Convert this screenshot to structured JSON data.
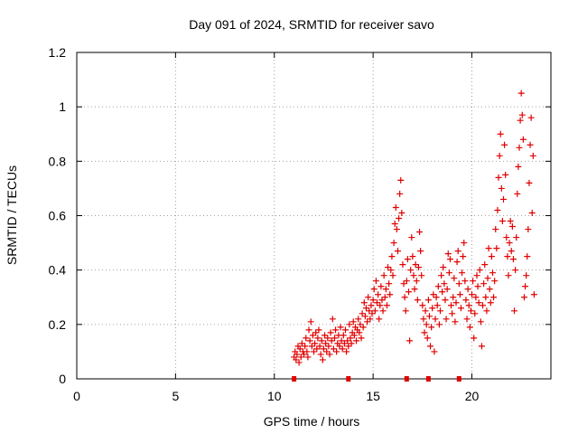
{
  "chart_data": {
    "type": "scatter",
    "title": "Day 091 of 2024, SRMTID for receiver savo",
    "xlabel": "GPS time / hours",
    "ylabel": "SRMTID / TECUs",
    "xlim": [
      0,
      24
    ],
    "ylim": [
      0,
      1.2
    ],
    "grid": true,
    "legend": "none",
    "xticks": [
      0,
      5,
      10,
      15,
      20
    ],
    "xtick_labels": [
      "0",
      "5",
      "10",
      "15",
      "20"
    ],
    "yticks": [
      0,
      0.2,
      0.4,
      0.6,
      0.8,
      1.0,
      1.2
    ],
    "ytick_labels": [
      "0",
      "0.2",
      "0.4",
      "0.6",
      "0.8",
      "1",
      "1.2"
    ],
    "marker_color": "#e00000",
    "series": [
      {
        "name": "SRMTID",
        "marker": "+",
        "points": [
          [
            11.0,
            0.08
          ],
          [
            11.05,
            0.1
          ],
          [
            11.1,
            0.07
          ],
          [
            11.15,
            0.09
          ],
          [
            11.2,
            0.12
          ],
          [
            11.25,
            0.06
          ],
          [
            11.3,
            0.11
          ],
          [
            11.35,
            0.08
          ],
          [
            11.4,
            0.13
          ],
          [
            11.45,
            0.1
          ],
          [
            11.5,
            0.09
          ],
          [
            11.55,
            0.12
          ],
          [
            11.6,
            0.15
          ],
          [
            11.65,
            0.1
          ],
          [
            11.7,
            0.08
          ],
          [
            11.75,
            0.18
          ],
          [
            11.8,
            0.14
          ],
          [
            11.85,
            0.21
          ],
          [
            11.9,
            0.12
          ],
          [
            11.95,
            0.16
          ],
          [
            12.0,
            0.1
          ],
          [
            12.05,
            0.13
          ],
          [
            12.1,
            0.17
          ],
          [
            12.15,
            0.11
          ],
          [
            12.2,
            0.15
          ],
          [
            12.25,
            0.18
          ],
          [
            12.3,
            0.12
          ],
          [
            12.35,
            0.09
          ],
          [
            12.4,
            0.14
          ],
          [
            12.45,
            0.07
          ],
          [
            12.5,
            0.11
          ],
          [
            12.55,
            0.16
          ],
          [
            12.6,
            0.13
          ],
          [
            12.65,
            0.1
          ],
          [
            12.7,
            0.15
          ],
          [
            12.75,
            0.12
          ],
          [
            12.8,
            0.09
          ],
          [
            12.85,
            0.17
          ],
          [
            12.9,
            0.14
          ],
          [
            12.95,
            0.22
          ],
          [
            13.0,
            0.11
          ],
          [
            13.05,
            0.15
          ],
          [
            13.1,
            0.18
          ],
          [
            13.15,
            0.1
          ],
          [
            13.2,
            0.13
          ],
          [
            13.25,
            0.16
          ],
          [
            13.3,
            0.12
          ],
          [
            13.35,
            0.19
          ],
          [
            13.4,
            0.14
          ],
          [
            13.45,
            0.11
          ],
          [
            13.5,
            0.16
          ],
          [
            13.55,
            0.13
          ],
          [
            13.6,
            0.18
          ],
          [
            13.65,
            0.1
          ],
          [
            13.7,
            0.14
          ],
          [
            13.75,
            0.12
          ],
          [
            13.8,
            0.2
          ],
          [
            13.85,
            0.15
          ],
          [
            13.9,
            0.13
          ],
          [
            13.95,
            0.17
          ],
          [
            14.0,
            0.21
          ],
          [
            14.05,
            0.16
          ],
          [
            14.1,
            0.19
          ],
          [
            14.15,
            0.14
          ],
          [
            14.2,
            0.18
          ],
          [
            14.25,
            0.22
          ],
          [
            14.3,
            0.17
          ],
          [
            14.35,
            0.2
          ],
          [
            14.4,
            0.15
          ],
          [
            14.45,
            0.24
          ],
          [
            14.5,
            0.19
          ],
          [
            14.55,
            0.28
          ],
          [
            14.6,
            0.23
          ],
          [
            14.65,
            0.26
          ],
          [
            14.7,
            0.21
          ],
          [
            14.75,
            0.3
          ],
          [
            14.8,
            0.25
          ],
          [
            14.85,
            0.22
          ],
          [
            14.9,
            0.27
          ],
          [
            14.95,
            0.24
          ],
          [
            15.0,
            0.29
          ],
          [
            15.05,
            0.33
          ],
          [
            15.1,
            0.25
          ],
          [
            15.15,
            0.36
          ],
          [
            15.2,
            0.28
          ],
          [
            15.25,
            0.31
          ],
          [
            15.3,
            0.22
          ],
          [
            15.35,
            0.27
          ],
          [
            15.4,
            0.34
          ],
          [
            15.45,
            0.29
          ],
          [
            15.5,
            0.25
          ],
          [
            15.55,
            0.38
          ],
          [
            15.6,
            0.3
          ],
          [
            15.65,
            0.33
          ],
          [
            15.7,
            0.27
          ],
          [
            15.75,
            0.41
          ],
          [
            15.8,
            0.35
          ],
          [
            15.85,
            0.31
          ],
          [
            15.9,
            0.4
          ],
          [
            15.95,
            0.45
          ],
          [
            16.0,
            0.38
          ],
          [
            16.05,
            0.5
          ],
          [
            16.1,
            0.57
          ],
          [
            16.15,
            0.63
          ],
          [
            16.2,
            0.55
          ],
          [
            16.25,
            0.47
          ],
          [
            16.3,
            0.59
          ],
          [
            16.35,
            0.68
          ],
          [
            16.4,
            0.73
          ],
          [
            16.45,
            0.61
          ],
          [
            16.5,
            0.42
          ],
          [
            16.55,
            0.35
          ],
          [
            16.6,
            0.3
          ],
          [
            16.65,
            0.25
          ],
          [
            16.7,
            0.36
          ],
          [
            16.75,
            0.44
          ],
          [
            16.8,
            0.32
          ],
          [
            16.85,
            0.14
          ],
          [
            16.9,
            0.4
          ],
          [
            16.95,
            0.52
          ],
          [
            17.0,
            0.45
          ],
          [
            17.05,
            0.38
          ],
          [
            17.1,
            0.33
          ],
          [
            17.15,
            0.42
          ],
          [
            17.2,
            0.36
          ],
          [
            17.25,
            0.29
          ],
          [
            17.3,
            0.41
          ],
          [
            17.35,
            0.54
          ],
          [
            17.4,
            0.47
          ],
          [
            17.45,
            0.38
          ],
          [
            17.5,
            0.27
          ],
          [
            17.55,
            0.22
          ],
          [
            17.6,
            0.17
          ],
          [
            17.65,
            0.25
          ],
          [
            17.7,
            0.2
          ],
          [
            17.75,
            0.15
          ],
          [
            17.8,
            0.29
          ],
          [
            17.85,
            0.23
          ],
          [
            17.9,
            0.12
          ],
          [
            17.95,
            0.19
          ],
          [
            18.0,
            0.26
          ],
          [
            18.05,
            0.31
          ],
          [
            18.1,
            0.1
          ],
          [
            18.15,
            0.22
          ],
          [
            18.2,
            0.3
          ],
          [
            18.25,
            0.27
          ],
          [
            18.3,
            0.34
          ],
          [
            18.35,
            0.2
          ],
          [
            18.4,
            0.25
          ],
          [
            18.45,
            0.38
          ],
          [
            18.5,
            0.32
          ],
          [
            18.55,
            0.41
          ],
          [
            18.6,
            0.35
          ],
          [
            18.65,
            0.29
          ],
          [
            18.7,
            0.22
          ],
          [
            18.75,
            0.33
          ],
          [
            18.8,
            0.46
          ],
          [
            18.85,
            0.39
          ],
          [
            18.9,
            0.44
          ],
          [
            18.95,
            0.27
          ],
          [
            19.0,
            0.24
          ],
          [
            19.05,
            0.3
          ],
          [
            19.1,
            0.37
          ],
          [
            19.15,
            0.21
          ],
          [
            19.2,
            0.28
          ],
          [
            19.25,
            0.43
          ],
          [
            19.3,
            0.47
          ],
          [
            19.35,
            0.35
          ],
          [
            19.4,
            0.31
          ],
          [
            19.45,
            0.26
          ],
          [
            19.5,
            0.39
          ],
          [
            19.55,
            0.45
          ],
          [
            19.6,
            0.5
          ],
          [
            19.65,
            0.36
          ],
          [
            19.7,
            0.29
          ],
          [
            19.75,
            0.22
          ],
          [
            19.8,
            0.33
          ],
          [
            19.85,
            0.27
          ],
          [
            19.9,
            0.19
          ],
          [
            19.95,
            0.25
          ],
          [
            20.0,
            0.31
          ],
          [
            20.05,
            0.36
          ],
          [
            20.1,
            0.15
          ],
          [
            20.15,
            0.24
          ],
          [
            20.2,
            0.3
          ],
          [
            20.25,
            0.38
          ],
          [
            20.3,
            0.34
          ],
          [
            20.35,
            0.28
          ],
          [
            20.4,
            0.4
          ],
          [
            20.45,
            0.21
          ],
          [
            20.5,
            0.12
          ],
          [
            20.55,
            0.27
          ],
          [
            20.6,
            0.35
          ],
          [
            20.65,
            0.42
          ],
          [
            20.7,
            0.3
          ],
          [
            20.75,
            0.25
          ],
          [
            20.8,
            0.37
          ],
          [
            20.85,
            0.48
          ],
          [
            20.9,
            0.33
          ],
          [
            20.95,
            0.28
          ],
          [
            21.0,
            0.45
          ],
          [
            21.05,
            0.39
          ],
          [
            21.1,
            0.3
          ],
          [
            21.15,
            0.36
          ],
          [
            21.2,
            0.55
          ],
          [
            21.25,
            0.48
          ],
          [
            21.3,
            0.62
          ],
          [
            21.35,
            0.74
          ],
          [
            21.4,
            0.82
          ],
          [
            21.45,
            0.9
          ],
          [
            21.5,
            0.7
          ],
          [
            21.55,
            0.58
          ],
          [
            21.6,
            0.66
          ],
          [
            21.65,
            0.86
          ],
          [
            21.7,
            0.75
          ],
          [
            21.75,
            0.52
          ],
          [
            21.8,
            0.45
          ],
          [
            21.85,
            0.38
          ],
          [
            21.9,
            0.5
          ],
          [
            21.95,
            0.58
          ],
          [
            22.0,
            0.47
          ],
          [
            22.05,
            0.56
          ],
          [
            22.1,
            0.44
          ],
          [
            22.15,
            0.25
          ],
          [
            22.2,
            0.4
          ],
          [
            22.25,
            0.52
          ],
          [
            22.3,
            0.68
          ],
          [
            22.35,
            0.78
          ],
          [
            22.4,
            0.85
          ],
          [
            22.45,
            0.95
          ],
          [
            22.5,
            1.05
          ],
          [
            22.55,
            0.97
          ],
          [
            22.6,
            0.88
          ],
          [
            22.65,
            0.3
          ],
          [
            22.7,
            0.34
          ],
          [
            22.75,
            0.38
          ],
          [
            22.8,
            0.45
          ],
          [
            22.85,
            0.55
          ],
          [
            22.9,
            0.72
          ],
          [
            22.95,
            0.86
          ],
          [
            23.0,
            0.96
          ],
          [
            23.05,
            0.61
          ],
          [
            23.1,
            0.82
          ],
          [
            23.15,
            0.31
          ]
        ]
      }
    ],
    "data_gap_markers_x": [
      11.0,
      13.75,
      16.7,
      17.8,
      19.35
    ]
  }
}
